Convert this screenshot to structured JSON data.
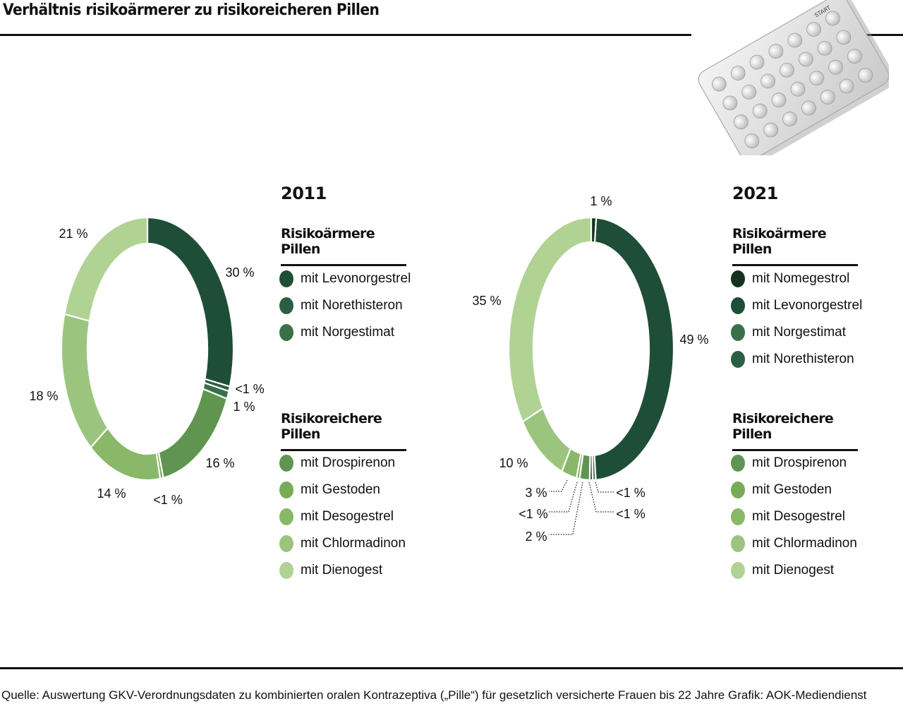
{
  "title": "Verhältnis risikoärmerer zu risikoreicheren Pillen",
  "source": "Quelle: Auswertung GKV-Verordnungsdaten zu kombinierten oralen Kontrazeptiva („Pille“) für gesetzlich versicherte Frauen bis 22 Jahre Grafik: AOK-Mediendienst",
  "image": {
    "pack_label": "START"
  },
  "colors": {
    "Nomegestrol": "#16311f",
    "Levonorgestrel": "#1f4e38",
    "Norethisteron": "#2b5e42",
    "Norgestimat": "#3a7048",
    "Drospirenon": "#5f9550",
    "Gestoden": "#77ac55",
    "Desogestrel": "#89b868",
    "Chlormadinon": "#9bc57e",
    "Dienogest": "#b0d394"
  },
  "chart_data": [
    {
      "type": "pie",
      "year": "2011",
      "slices": [
        {
          "label": "mit Levonorgestrel",
          "key": "Levonorgestrel",
          "value": 30,
          "display": "30 %"
        },
        {
          "label": "mit Norethisteron",
          "key": "Norethisteron",
          "value": 0.6,
          "display": "<1 %"
        },
        {
          "label": "mit Norgestimat",
          "key": "Norgestimat",
          "value": 1,
          "display": "1 %"
        },
        {
          "label": "mit Drospirenon",
          "key": "Drospirenon",
          "value": 16,
          "display": "16 %"
        },
        {
          "label": "mit Gestoden",
          "key": "Gestoden",
          "value": 0.6,
          "display": "<1 %"
        },
        {
          "label": "mit Desogestrel",
          "key": "Desogestrel",
          "value": 14,
          "display": "14 %"
        },
        {
          "label": "mit Chlormadinon",
          "key": "Chlormadinon",
          "value": 18,
          "display": "18 %"
        },
        {
          "label": "mit Dienogest",
          "key": "Dienogest",
          "value": 21,
          "display": "21 %"
        }
      ],
      "legend": {
        "groups": [
          {
            "title": "Risikoärmere Pillen",
            "items": [
              {
                "label": "mit Levonorgestrel",
                "key": "Levonorgestrel"
              },
              {
                "label": "mit Norethisteron",
                "key": "Norethisteron"
              },
              {
                "label": "mit Norgestimat",
                "key": "Norgestimat"
              }
            ]
          },
          {
            "title": "Risikoreichere Pillen",
            "items": [
              {
                "label": "mit Drospirenon",
                "key": "Drospirenon"
              },
              {
                "label": "mit Gestoden",
                "key": "Gestoden"
              },
              {
                "label": "mit Desogestrel",
                "key": "Desogestrel"
              },
              {
                "label": "mit Chlormadinon",
                "key": "Chlormadinon"
              },
              {
                "label": "mit Dienogest",
                "key": "Dienogest"
              }
            ]
          }
        ]
      }
    },
    {
      "type": "pie",
      "year": "2021",
      "slices": [
        {
          "label": "mit Nomegestrol",
          "key": "Nomegestrol",
          "value": 1,
          "display": "1 %"
        },
        {
          "label": "mit Levonorgestrel",
          "key": "Levonorgestrel",
          "value": 49,
          "display": "49 %"
        },
        {
          "label": "mit Norgestimat",
          "key": "Norgestimat",
          "value": 0.6,
          "display": "<1 %"
        },
        {
          "label": "mit Norethisteron",
          "key": "Norethisteron",
          "value": 0.6,
          "display": "<1 %"
        },
        {
          "label": "mit Drospirenon",
          "key": "Drospirenon",
          "value": 2,
          "display": "2 %"
        },
        {
          "label": "mit Gestoden",
          "key": "Gestoden",
          "value": 0.6,
          "display": "<1 %"
        },
        {
          "label": "mit Desogestrel",
          "key": "Desogestrel",
          "value": 3,
          "display": "3 %"
        },
        {
          "label": "mit Chlormadinon",
          "key": "Chlormadinon",
          "value": 10,
          "display": "10 %"
        },
        {
          "label": "mit Dienogest",
          "key": "Dienogest",
          "value": 35,
          "display": "35 %"
        }
      ],
      "legend": {
        "groups": [
          {
            "title": "Risikoärmere Pillen",
            "items": [
              {
                "label": "mit Nomegestrol",
                "key": "Nomegestrol"
              },
              {
                "label": "mit Levonorgestrel",
                "key": "Levonorgestrel"
              },
              {
                "label": "mit Norgestimat",
                "key": "Norgestimat"
              },
              {
                "label": "mit Norethisteron",
                "key": "Norethisteron"
              }
            ]
          },
          {
            "title": "Risikoreichere Pillen",
            "items": [
              {
                "label": "mit Drospirenon",
                "key": "Drospirenon"
              },
              {
                "label": "mit Gestoden",
                "key": "Gestoden"
              },
              {
                "label": "mit Desogestrel",
                "key": "Desogestrel"
              },
              {
                "label": "mit Chlormadinon",
                "key": "Chlormadinon"
              },
              {
                "label": "mit Dienogest",
                "key": "Dienogest"
              }
            ]
          }
        ]
      }
    }
  ]
}
